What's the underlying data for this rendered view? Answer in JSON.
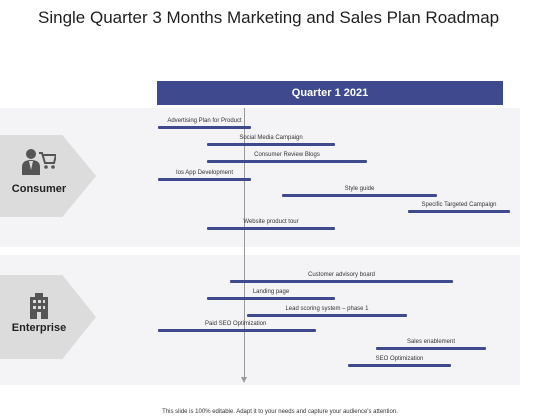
{
  "title": "Single Quarter 3 Months Marketing and Sales Plan Roadmap",
  "quarter_label": "Quarter 1  2021",
  "segments": [
    {
      "label": "Consumer",
      "icon": "person-cart-icon"
    },
    {
      "label": "Enterprise",
      "icon": "building-icon"
    }
  ],
  "consumer_tasks": [
    "Advertising Plan for Product",
    "Social Media Campaign",
    "Consumer Review Blogs",
    "Ios App Development",
    "Style guide",
    "Specific Targeted Campaign",
    "Website product tour"
  ],
  "enterprise_tasks": [
    "Customer advisory board",
    "Landing page",
    "Lead scoring system – phase 1",
    "Paid SEO  Optimization",
    "Sales enablement",
    "SEO  Optimization"
  ],
  "footer": "This slide is 100% editable. Adapt it to your needs and capture your audience's attention.",
  "colors": {
    "accent": "#3e4a8d",
    "band": "#f4f4f6",
    "chevron": "#dcdcdc"
  }
}
